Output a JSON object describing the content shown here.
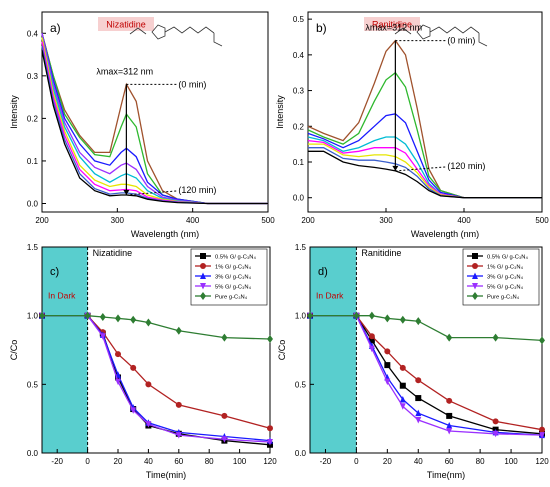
{
  "chart_data": [
    {
      "type": "line",
      "panel_label": "a)",
      "compound_label": "Nizatidine",
      "xlabel": "Wavelength (nm)",
      "ylabel": "Intensity",
      "xlim": [
        200,
        500
      ],
      "ylim": [
        -0.02,
        0.45
      ],
      "xticks": [
        200,
        300,
        400,
        500
      ],
      "yticks": [
        0.0,
        0.1,
        0.2,
        0.3,
        0.4
      ],
      "xtick_labels": [
        "200",
        "300",
        "400",
        "500"
      ],
      "ytick_labels": [
        "0.0",
        "0.1",
        "0.2",
        "0.3",
        "0.4"
      ],
      "annotations": {
        "lambda_max": "λmax=312 nm",
        "start": "(0 min)",
        "end": "(120 min)"
      },
      "series": [
        {
          "color": "#a0522d",
          "x": [
            200,
            215,
            230,
            250,
            270,
            290,
            305,
            312,
            325,
            340,
            360,
            380,
            420,
            500
          ],
          "y": [
            0.4,
            0.3,
            0.22,
            0.16,
            0.12,
            0.12,
            0.23,
            0.28,
            0.24,
            0.1,
            0.03,
            0.01,
            0.0,
            0.0
          ]
        },
        {
          "color": "#2eb82e",
          "x": [
            200,
            215,
            230,
            250,
            270,
            290,
            305,
            312,
            325,
            340,
            360,
            380,
            420,
            500
          ],
          "y": [
            0.4,
            0.3,
            0.21,
            0.155,
            0.115,
            0.11,
            0.18,
            0.21,
            0.18,
            0.07,
            0.02,
            0.01,
            0.0,
            0.0
          ]
        },
        {
          "color": "#1a1aff",
          "x": [
            200,
            215,
            230,
            250,
            270,
            290,
            305,
            312,
            325,
            340,
            360,
            380,
            420,
            500
          ],
          "y": [
            0.4,
            0.29,
            0.2,
            0.14,
            0.1,
            0.09,
            0.12,
            0.13,
            0.11,
            0.05,
            0.02,
            0.01,
            0.0,
            0.0
          ]
        },
        {
          "color": "#9b30ff",
          "x": [
            200,
            215,
            230,
            250,
            270,
            290,
            305,
            312,
            325,
            340,
            360,
            380,
            420,
            500
          ],
          "y": [
            0.4,
            0.28,
            0.19,
            0.12,
            0.085,
            0.07,
            0.09,
            0.095,
            0.08,
            0.04,
            0.015,
            0.008,
            0.0,
            0.0
          ]
        },
        {
          "color": "#00bcd4",
          "x": [
            200,
            215,
            230,
            250,
            270,
            290,
            305,
            312,
            325,
            340,
            360,
            380,
            420,
            500
          ],
          "y": [
            0.39,
            0.27,
            0.18,
            0.11,
            0.07,
            0.05,
            0.065,
            0.07,
            0.06,
            0.03,
            0.012,
            0.006,
            0.0,
            0.0
          ]
        },
        {
          "color": "#e6e600",
          "x": [
            200,
            215,
            230,
            250,
            270,
            290,
            305,
            312,
            325,
            340,
            360,
            380,
            420,
            500
          ],
          "y": [
            0.39,
            0.26,
            0.17,
            0.09,
            0.055,
            0.04,
            0.045,
            0.045,
            0.04,
            0.02,
            0.01,
            0.005,
            0.0,
            0.0
          ]
        },
        {
          "color": "#ff00ff",
          "x": [
            200,
            215,
            230,
            250,
            270,
            290,
            305,
            312,
            325,
            340,
            360,
            380,
            420,
            500
          ],
          "y": [
            0.38,
            0.25,
            0.16,
            0.08,
            0.045,
            0.03,
            0.032,
            0.033,
            0.03,
            0.015,
            0.008,
            0.004,
            0.0,
            0.0
          ]
        },
        {
          "color": "#3a5fcd",
          "x": [
            200,
            215,
            230,
            250,
            270,
            290,
            305,
            312,
            325,
            340,
            360,
            380,
            420,
            500
          ],
          "y": [
            0.37,
            0.24,
            0.15,
            0.07,
            0.035,
            0.022,
            0.025,
            0.025,
            0.022,
            0.012,
            0.006,
            0.003,
            0.0,
            0.0
          ]
        },
        {
          "color": "#000000",
          "x": [
            200,
            215,
            230,
            250,
            270,
            290,
            305,
            312,
            325,
            340,
            360,
            380,
            420,
            500
          ],
          "y": [
            0.36,
            0.23,
            0.14,
            0.06,
            0.03,
            0.018,
            0.02,
            0.02,
            0.018,
            0.01,
            0.005,
            0.002,
            0.0,
            0.0
          ]
        }
      ]
    },
    {
      "type": "line",
      "panel_label": "b)",
      "compound_label": "Ranitidine",
      "xlabel": "Wavelength (nm)",
      "ylabel": "Intensity",
      "xlim": [
        200,
        500
      ],
      "ylim": [
        -0.04,
        0.52
      ],
      "xticks": [
        200,
        300,
        400,
        500
      ],
      "yticks": [
        0.0,
        0.1,
        0.2,
        0.3,
        0.4,
        0.5
      ],
      "xtick_labels": [
        "200",
        "300",
        "400",
        "500"
      ],
      "ytick_labels": [
        "0.0",
        "0.1",
        "0.2",
        "0.3",
        "0.4",
        "0.5"
      ],
      "annotations": {
        "lambda_max": "λmax=312 nm",
        "start": "(0 min)",
        "end": "(120 min)"
      },
      "series": [
        {
          "color": "#a0522d",
          "x": [
            200,
            220,
            245,
            265,
            285,
            300,
            312,
            325,
            340,
            355,
            370,
            400,
            450,
            500
          ],
          "y": [
            0.2,
            0.18,
            0.16,
            0.21,
            0.32,
            0.41,
            0.44,
            0.4,
            0.25,
            0.08,
            0.02,
            0.0,
            0.0,
            0.0
          ]
        },
        {
          "color": "#2eb82e",
          "x": [
            200,
            220,
            245,
            265,
            285,
            300,
            312,
            325,
            340,
            355,
            370,
            400,
            450,
            500
          ],
          "y": [
            0.19,
            0.17,
            0.15,
            0.18,
            0.27,
            0.33,
            0.35,
            0.31,
            0.19,
            0.06,
            0.02,
            0.0,
            0.0,
            0.0
          ]
        },
        {
          "color": "#1a1aff",
          "x": [
            200,
            220,
            245,
            265,
            285,
            300,
            312,
            325,
            340,
            355,
            370,
            400,
            450,
            500
          ],
          "y": [
            0.18,
            0.165,
            0.14,
            0.16,
            0.2,
            0.23,
            0.235,
            0.21,
            0.13,
            0.05,
            0.015,
            0.0,
            0.0,
            0.0
          ]
        },
        {
          "color": "#00bcd4",
          "x": [
            200,
            220,
            245,
            265,
            285,
            300,
            312,
            325,
            340,
            355,
            370,
            400,
            450,
            500
          ],
          "y": [
            0.17,
            0.16,
            0.13,
            0.14,
            0.16,
            0.17,
            0.17,
            0.15,
            0.1,
            0.04,
            0.01,
            0.0,
            0.0,
            0.0
          ]
        },
        {
          "color": "#ff00ff",
          "x": [
            200,
            220,
            245,
            265,
            285,
            300,
            312,
            325,
            340,
            355,
            370,
            400,
            450,
            500
          ],
          "y": [
            0.16,
            0.155,
            0.125,
            0.13,
            0.14,
            0.14,
            0.14,
            0.125,
            0.08,
            0.035,
            0.01,
            0.0,
            0.0,
            0.0
          ]
        },
        {
          "color": "#e6e600",
          "x": [
            200,
            220,
            245,
            265,
            285,
            300,
            312,
            325,
            340,
            355,
            370,
            400,
            450,
            500
          ],
          "y": [
            0.15,
            0.15,
            0.12,
            0.115,
            0.12,
            0.12,
            0.115,
            0.1,
            0.07,
            0.03,
            0.008,
            0.0,
            0.0,
            0.0
          ]
        },
        {
          "color": "#3a5fcd",
          "x": [
            200,
            220,
            245,
            265,
            285,
            300,
            312,
            325,
            340,
            355,
            370,
            400,
            450,
            500
          ],
          "y": [
            0.14,
            0.14,
            0.11,
            0.105,
            0.105,
            0.1,
            0.095,
            0.085,
            0.06,
            0.025,
            0.006,
            0.0,
            0.0,
            0.0
          ]
        },
        {
          "color": "#000000",
          "x": [
            200,
            220,
            245,
            265,
            285,
            300,
            312,
            325,
            340,
            355,
            370,
            400,
            450,
            500
          ],
          "y": [
            0.13,
            0.13,
            0.1,
            0.09,
            0.085,
            0.08,
            0.075,
            0.065,
            0.045,
            0.02,
            0.005,
            0.0,
            0.0,
            0.0
          ]
        }
      ]
    },
    {
      "type": "line",
      "panel_label": "c)",
      "compound_label": "Nizatidine",
      "dark_label": "In Dark",
      "xlabel": "Time(min)",
      "ylabel": "C/Co",
      "xlim": [
        -30,
        120
      ],
      "ylim": [
        0.0,
        1.5
      ],
      "xticks": [
        -20,
        0,
        20,
        40,
        60,
        80,
        100,
        120
      ],
      "yticks": [
        0.0,
        0.5,
        1.0,
        1.5
      ],
      "xtick_labels": [
        "-20",
        "0",
        "20",
        "40",
        "60",
        "80",
        "100",
        "120"
      ],
      "ytick_labels": [
        "0.0",
        "0.5",
        "1.0",
        "1.5"
      ],
      "legend_position": "top-right",
      "series": [
        {
          "name": "0.5% G/ g-C₃N₄",
          "color": "#000000",
          "marker": "square",
          "x": [
            -30,
            0,
            10,
            20,
            30,
            40,
            60,
            90,
            120
          ],
          "y": [
            1.0,
            1.0,
            0.87,
            0.55,
            0.32,
            0.2,
            0.14,
            0.09,
            0.06
          ]
        },
        {
          "name": "1% G/ g-C₃N₄",
          "color": "#b22222",
          "marker": "circle",
          "x": [
            -30,
            0,
            10,
            20,
            30,
            40,
            60,
            90,
            120
          ],
          "y": [
            1.0,
            1.0,
            0.88,
            0.72,
            0.62,
            0.5,
            0.35,
            0.27,
            0.18
          ]
        },
        {
          "name": "3% G/ g-C₃N₄",
          "color": "#1a1aff",
          "marker": "triangle",
          "x": [
            -30,
            0,
            10,
            20,
            30,
            40,
            60,
            90,
            120
          ],
          "y": [
            1.0,
            1.0,
            0.86,
            0.57,
            0.33,
            0.22,
            0.15,
            0.12,
            0.09
          ]
        },
        {
          "name": "5% G/ g-C₃N₄",
          "color": "#9b30ff",
          "marker": "triangle-down",
          "x": [
            -30,
            0,
            10,
            20,
            30,
            40,
            60,
            90,
            120
          ],
          "y": [
            1.0,
            1.0,
            0.85,
            0.52,
            0.31,
            0.21,
            0.13,
            0.1,
            0.08
          ]
        },
        {
          "name": "Pure g-C₃N₄",
          "color": "#2e7d32",
          "marker": "diamond",
          "x": [
            -30,
            0,
            10,
            20,
            30,
            40,
            60,
            90,
            120
          ],
          "y": [
            1.0,
            1.0,
            0.99,
            0.98,
            0.97,
            0.95,
            0.89,
            0.84,
            0.83
          ]
        }
      ]
    },
    {
      "type": "line",
      "panel_label": "d)",
      "compound_label": "Ranitidine",
      "dark_label": "In Dark",
      "xlabel": "Time(nm)",
      "ylabel": "C/Co",
      "xlim": [
        -30,
        120
      ],
      "ylim": [
        0.0,
        1.5
      ],
      "xticks": [
        -20,
        0,
        20,
        40,
        60,
        80,
        100,
        120
      ],
      "yticks": [
        0.0,
        0.5,
        1.0,
        1.5
      ],
      "xtick_labels": [
        "-20",
        "0",
        "20",
        "40",
        "60",
        "80",
        "100",
        "120"
      ],
      "ytick_labels": [
        "0.0",
        "0.5",
        "1.0",
        "1.5"
      ],
      "legend_position": "top-right",
      "series": [
        {
          "name": "0.5% G/ g-C₃N₄",
          "color": "#000000",
          "marker": "square",
          "x": [
            -30,
            0,
            10,
            20,
            30,
            40,
            60,
            90,
            120
          ],
          "y": [
            1.0,
            1.0,
            0.82,
            0.64,
            0.49,
            0.4,
            0.27,
            0.17,
            0.14
          ]
        },
        {
          "name": "1% G/ g-C₃N₄",
          "color": "#b22222",
          "marker": "circle",
          "x": [
            -30,
            0,
            10,
            20,
            30,
            40,
            60,
            90,
            120
          ],
          "y": [
            1.0,
            1.0,
            0.85,
            0.74,
            0.62,
            0.53,
            0.38,
            0.23,
            0.17
          ]
        },
        {
          "name": "3% G/ g-C₃N₄",
          "color": "#1a1aff",
          "marker": "triangle",
          "x": [
            -30,
            0,
            10,
            20,
            30,
            40,
            60,
            90,
            120
          ],
          "y": [
            1.0,
            1.0,
            0.78,
            0.55,
            0.39,
            0.29,
            0.2,
            0.15,
            0.13
          ]
        },
        {
          "name": "5% G/ g-C₃N₄",
          "color": "#9b30ff",
          "marker": "triangle-down",
          "x": [
            -30,
            0,
            10,
            20,
            30,
            40,
            60,
            90,
            120
          ],
          "y": [
            1.0,
            1.0,
            0.76,
            0.52,
            0.34,
            0.24,
            0.16,
            0.14,
            0.13
          ]
        },
        {
          "name": "Pure g-C₃N₄",
          "color": "#2e7d32",
          "marker": "diamond",
          "x": [
            -30,
            0,
            10,
            20,
            30,
            40,
            60,
            90,
            120
          ],
          "y": [
            1.0,
            1.0,
            1.0,
            0.98,
            0.97,
            0.96,
            0.84,
            0.84,
            0.82
          ]
        }
      ]
    }
  ]
}
